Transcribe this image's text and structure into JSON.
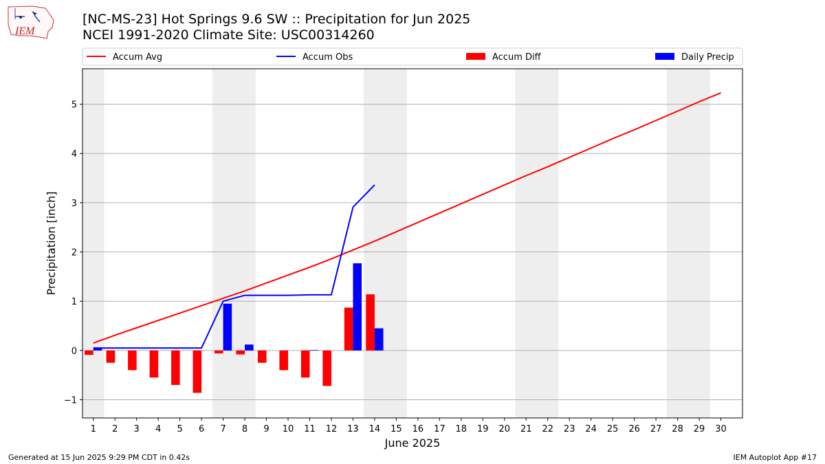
{
  "header": {
    "title": "[NC-MS-23] Hot Springs 9.6 SW :: Precipitation for Jun 2025",
    "subtitle": "NCEI 1991-2020 Climate Site: USC00314260",
    "logo_text": "IEM"
  },
  "footer": {
    "left": "Generated at 15 Jun 2025 9:29 PM CDT in 0.42s",
    "right": "IEM Autoplot App #17"
  },
  "chart_data": {
    "type": "bar",
    "xlabel": "June 2025",
    "ylabel": "Precipitation [inch]",
    "xlim": [
      0.5,
      31
    ],
    "ylim": [
      -1.37,
      5.72
    ],
    "yticks": [
      -1,
      0,
      1,
      2,
      3,
      4,
      5
    ],
    "ytick_labels": [
      "−1",
      "0",
      "1",
      "2",
      "3",
      "4",
      "5"
    ],
    "x": [
      1,
      2,
      3,
      4,
      5,
      6,
      7,
      8,
      9,
      10,
      11,
      12,
      13,
      14,
      15,
      16,
      17,
      18,
      19,
      20,
      21,
      22,
      23,
      24,
      25,
      26,
      27,
      28,
      29,
      30
    ],
    "grid": "horizontal",
    "legend_position": "top",
    "weekend_shading": [
      [
        0.5,
        1.5
      ],
      [
        6.5,
        8.5
      ],
      [
        13.5,
        15.5
      ],
      [
        20.5,
        22.5
      ],
      [
        27.5,
        29.5
      ]
    ],
    "series": [
      {
        "name": "Accum Avg",
        "kind": "line",
        "color": "#ff0000",
        "x": [
          1,
          2,
          3,
          4,
          5,
          6,
          7,
          8,
          9,
          10,
          11,
          12,
          13,
          14,
          15,
          16,
          17,
          18,
          19,
          20,
          21,
          22,
          23,
          24,
          25,
          26,
          27,
          28,
          29,
          30
        ],
        "values": [
          0.15,
          0.31,
          0.46,
          0.61,
          0.76,
          0.91,
          1.06,
          1.21,
          1.37,
          1.53,
          1.69,
          1.86,
          2.04,
          2.22,
          2.41,
          2.6,
          2.79,
          2.98,
          3.17,
          3.36,
          3.55,
          3.73,
          3.92,
          4.11,
          4.3,
          4.48,
          4.67,
          4.86,
          5.05,
          5.23
        ]
      },
      {
        "name": "Accum Obs",
        "kind": "line",
        "color": "#0000ff",
        "x": [
          1,
          2,
          3,
          4,
          5,
          6,
          7,
          8,
          9,
          10,
          11,
          12,
          13,
          14
        ],
        "values": [
          0.05,
          0.05,
          0.05,
          0.05,
          0.05,
          0.05,
          1.0,
          1.12,
          1.12,
          1.12,
          1.13,
          1.13,
          2.91,
          3.36
        ]
      },
      {
        "name": "Accum Diff",
        "kind": "bar",
        "color": "#ff0000",
        "x": [
          1,
          2,
          3,
          4,
          5,
          6,
          7,
          8,
          9,
          10,
          11,
          12,
          13,
          14
        ],
        "values": [
          -0.09,
          -0.25,
          -0.4,
          -0.55,
          -0.7,
          -0.86,
          -0.06,
          -0.08,
          -0.25,
          -0.4,
          -0.55,
          -0.72,
          0.87,
          1.14
        ]
      },
      {
        "name": "Daily Precip",
        "kind": "bar",
        "color": "#0000ff",
        "x": [
          1,
          2,
          3,
          4,
          5,
          6,
          7,
          8,
          9,
          10,
          11,
          12,
          13,
          14
        ],
        "values": [
          0.05,
          0,
          0,
          0,
          0,
          0,
          0.95,
          0.12,
          0,
          0,
          0.01,
          0,
          1.77,
          0.45
        ]
      }
    ]
  }
}
